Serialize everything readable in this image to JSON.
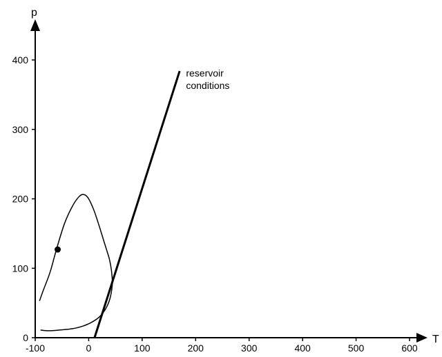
{
  "chart_data": {
    "type": "line",
    "title": "",
    "xlabel": "T",
    "ylabel": "p",
    "xlim": [
      -100,
      600
    ],
    "ylim": [
      0,
      400
    ],
    "xticks": [
      "-100",
      "0",
      "100",
      "200",
      "300",
      "400",
      "500",
      "600"
    ],
    "yticks": [
      "0",
      "100",
      "200",
      "300",
      "400"
    ],
    "grid": false,
    "series": [
      {
        "id": "phase-envelope",
        "style": "thin",
        "x": [
          -92,
          -85,
          -72,
          -60,
          -45,
          -30,
          -17,
          -8,
          0,
          10,
          20,
          30,
          38,
          42,
          44,
          44,
          40,
          32,
          20,
          5,
          -10,
          -30,
          -55,
          -75,
          -90
        ],
        "y": [
          53,
          68,
          95,
          128,
          165,
          190,
          204,
          206,
          200,
          183,
          160,
          135,
          115,
          100,
          85,
          75,
          57,
          42,
          30,
          22,
          17,
          13,
          11,
          10,
          11
        ]
      },
      {
        "id": "reservoir-conditions",
        "style": "thick",
        "x": [
          11,
          170
        ],
        "y": [
          0,
          384
        ]
      }
    ],
    "points": [
      {
        "id": "critical-point",
        "x": -58,
        "y": 127
      }
    ],
    "annotations": [
      {
        "text_lines": [
          "reservoir",
          "conditions"
        ],
        "x": 182,
        "y": 376
      }
    ]
  }
}
